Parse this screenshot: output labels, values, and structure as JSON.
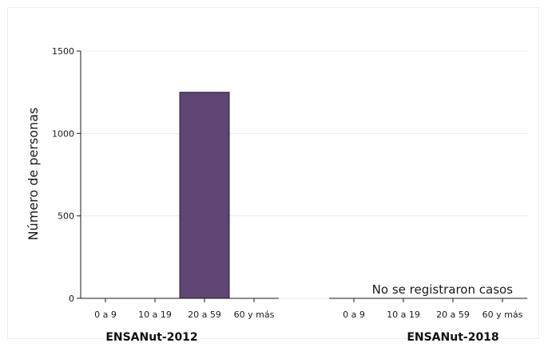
{
  "chart_data": {
    "type": "bar",
    "ylabel": "Número de personas",
    "ylim": [
      0,
      1500
    ],
    "yticks": [
      0,
      500,
      1000,
      1500
    ],
    "grid": true,
    "color": "#5e4573",
    "panels": [
      {
        "name": "ENSANut-2012",
        "categories": [
          "0 a 9",
          "10 a 19",
          "20 a 59",
          "60 y más"
        ],
        "values": [
          0,
          0,
          1250,
          0
        ],
        "annotation": ""
      },
      {
        "name": "ENSANut-2018",
        "categories": [
          "0 a 9",
          "10 a 19",
          "20 a 59",
          "60 y más"
        ],
        "values": [
          0,
          0,
          0,
          0
        ],
        "annotation": "No se registraron casos"
      }
    ]
  }
}
